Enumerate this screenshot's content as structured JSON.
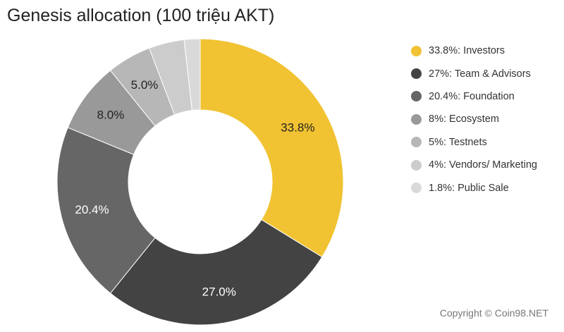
{
  "chart_data": {
    "type": "pie",
    "variant": "donut",
    "title": "Genesis allocation (100 triệu AKT)",
    "slices": [
      {
        "value": 33.8,
        "label": "33.8%",
        "legend": "33.8%: Investors",
        "color": "#f1c232"
      },
      {
        "value": 27.0,
        "label": "27.0%",
        "legend": "27%: Team & Advisors",
        "color": "#434343"
      },
      {
        "value": 20.4,
        "label": "20.4%",
        "legend": "20.4%: Foundation",
        "color": "#666666"
      },
      {
        "value": 8.0,
        "label": "8.0%",
        "legend": "8%: Ecosystem",
        "color": "#999999"
      },
      {
        "value": 5.0,
        "label": "5.0%",
        "legend": "5%: Testnets",
        "color": "#b7b7b7"
      },
      {
        "value": 4.0,
        "label": "",
        "legend": "4%: Vendors/ Marketing",
        "color": "#cccccc"
      },
      {
        "value": 1.8,
        "label": "",
        "legend": "1.8%: Public Sale",
        "color": "#d9d9d9"
      }
    ],
    "legend_position": "right"
  },
  "footer": {
    "copyright": "Copyright © Coin98.NET"
  }
}
